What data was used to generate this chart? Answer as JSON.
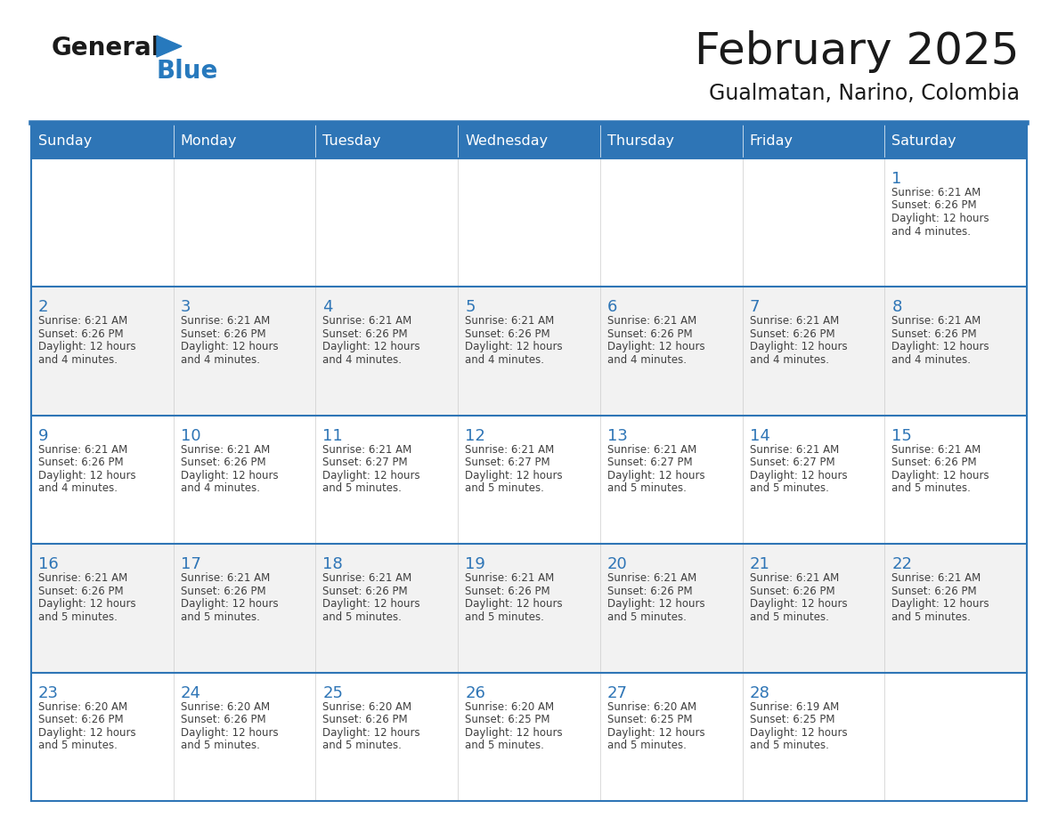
{
  "title": "February 2025",
  "subtitle": "Gualmatan, Narino, Colombia",
  "days_of_week": [
    "Sunday",
    "Monday",
    "Tuesday",
    "Wednesday",
    "Thursday",
    "Friday",
    "Saturday"
  ],
  "header_bg": "#2E75B6",
  "header_text": "#FFFFFF",
  "row_bg_white": "#FFFFFF",
  "row_bg_gray": "#F2F2F2",
  "day_number_color": "#2E75B6",
  "info_text_color": "#404040",
  "border_color": "#2E75B6",
  "cell_border_color": "#BBBBBB",
  "title_color": "#1A1A1A",
  "subtitle_color": "#1A1A1A",
  "logo_general_color": "#1A1A1A",
  "logo_blue_color": "#2779BD",
  "week_rows": [
    {
      "bg": "#FFFFFF",
      "days": [
        {
          "day": null,
          "info": ""
        },
        {
          "day": null,
          "info": ""
        },
        {
          "day": null,
          "info": ""
        },
        {
          "day": null,
          "info": ""
        },
        {
          "day": null,
          "info": ""
        },
        {
          "day": null,
          "info": ""
        },
        {
          "day": 1,
          "info": "Sunrise: 6:21 AM\nSunset: 6:26 PM\nDaylight: 12 hours\nand 4 minutes."
        }
      ]
    },
    {
      "bg": "#F2F2F2",
      "days": [
        {
          "day": 2,
          "info": "Sunrise: 6:21 AM\nSunset: 6:26 PM\nDaylight: 12 hours\nand 4 minutes."
        },
        {
          "day": 3,
          "info": "Sunrise: 6:21 AM\nSunset: 6:26 PM\nDaylight: 12 hours\nand 4 minutes."
        },
        {
          "day": 4,
          "info": "Sunrise: 6:21 AM\nSunset: 6:26 PM\nDaylight: 12 hours\nand 4 minutes."
        },
        {
          "day": 5,
          "info": "Sunrise: 6:21 AM\nSunset: 6:26 PM\nDaylight: 12 hours\nand 4 minutes."
        },
        {
          "day": 6,
          "info": "Sunrise: 6:21 AM\nSunset: 6:26 PM\nDaylight: 12 hours\nand 4 minutes."
        },
        {
          "day": 7,
          "info": "Sunrise: 6:21 AM\nSunset: 6:26 PM\nDaylight: 12 hours\nand 4 minutes."
        },
        {
          "day": 8,
          "info": "Sunrise: 6:21 AM\nSunset: 6:26 PM\nDaylight: 12 hours\nand 4 minutes."
        }
      ]
    },
    {
      "bg": "#FFFFFF",
      "days": [
        {
          "day": 9,
          "info": "Sunrise: 6:21 AM\nSunset: 6:26 PM\nDaylight: 12 hours\nand 4 minutes."
        },
        {
          "day": 10,
          "info": "Sunrise: 6:21 AM\nSunset: 6:26 PM\nDaylight: 12 hours\nand 4 minutes."
        },
        {
          "day": 11,
          "info": "Sunrise: 6:21 AM\nSunset: 6:27 PM\nDaylight: 12 hours\nand 5 minutes."
        },
        {
          "day": 12,
          "info": "Sunrise: 6:21 AM\nSunset: 6:27 PM\nDaylight: 12 hours\nand 5 minutes."
        },
        {
          "day": 13,
          "info": "Sunrise: 6:21 AM\nSunset: 6:27 PM\nDaylight: 12 hours\nand 5 minutes."
        },
        {
          "day": 14,
          "info": "Sunrise: 6:21 AM\nSunset: 6:27 PM\nDaylight: 12 hours\nand 5 minutes."
        },
        {
          "day": 15,
          "info": "Sunrise: 6:21 AM\nSunset: 6:26 PM\nDaylight: 12 hours\nand 5 minutes."
        }
      ]
    },
    {
      "bg": "#F2F2F2",
      "days": [
        {
          "day": 16,
          "info": "Sunrise: 6:21 AM\nSunset: 6:26 PM\nDaylight: 12 hours\nand 5 minutes."
        },
        {
          "day": 17,
          "info": "Sunrise: 6:21 AM\nSunset: 6:26 PM\nDaylight: 12 hours\nand 5 minutes."
        },
        {
          "day": 18,
          "info": "Sunrise: 6:21 AM\nSunset: 6:26 PM\nDaylight: 12 hours\nand 5 minutes."
        },
        {
          "day": 19,
          "info": "Sunrise: 6:21 AM\nSunset: 6:26 PM\nDaylight: 12 hours\nand 5 minutes."
        },
        {
          "day": 20,
          "info": "Sunrise: 6:21 AM\nSunset: 6:26 PM\nDaylight: 12 hours\nand 5 minutes."
        },
        {
          "day": 21,
          "info": "Sunrise: 6:21 AM\nSunset: 6:26 PM\nDaylight: 12 hours\nand 5 minutes."
        },
        {
          "day": 22,
          "info": "Sunrise: 6:21 AM\nSunset: 6:26 PM\nDaylight: 12 hours\nand 5 minutes."
        }
      ]
    },
    {
      "bg": "#FFFFFF",
      "days": [
        {
          "day": 23,
          "info": "Sunrise: 6:20 AM\nSunset: 6:26 PM\nDaylight: 12 hours\nand 5 minutes."
        },
        {
          "day": 24,
          "info": "Sunrise: 6:20 AM\nSunset: 6:26 PM\nDaylight: 12 hours\nand 5 minutes."
        },
        {
          "day": 25,
          "info": "Sunrise: 6:20 AM\nSunset: 6:26 PM\nDaylight: 12 hours\nand 5 minutes."
        },
        {
          "day": 26,
          "info": "Sunrise: 6:20 AM\nSunset: 6:25 PM\nDaylight: 12 hours\nand 5 minutes."
        },
        {
          "day": 27,
          "info": "Sunrise: 6:20 AM\nSunset: 6:25 PM\nDaylight: 12 hours\nand 5 minutes."
        },
        {
          "day": 28,
          "info": "Sunrise: 6:19 AM\nSunset: 6:25 PM\nDaylight: 12 hours\nand 5 minutes."
        },
        {
          "day": null,
          "info": ""
        }
      ]
    }
  ]
}
